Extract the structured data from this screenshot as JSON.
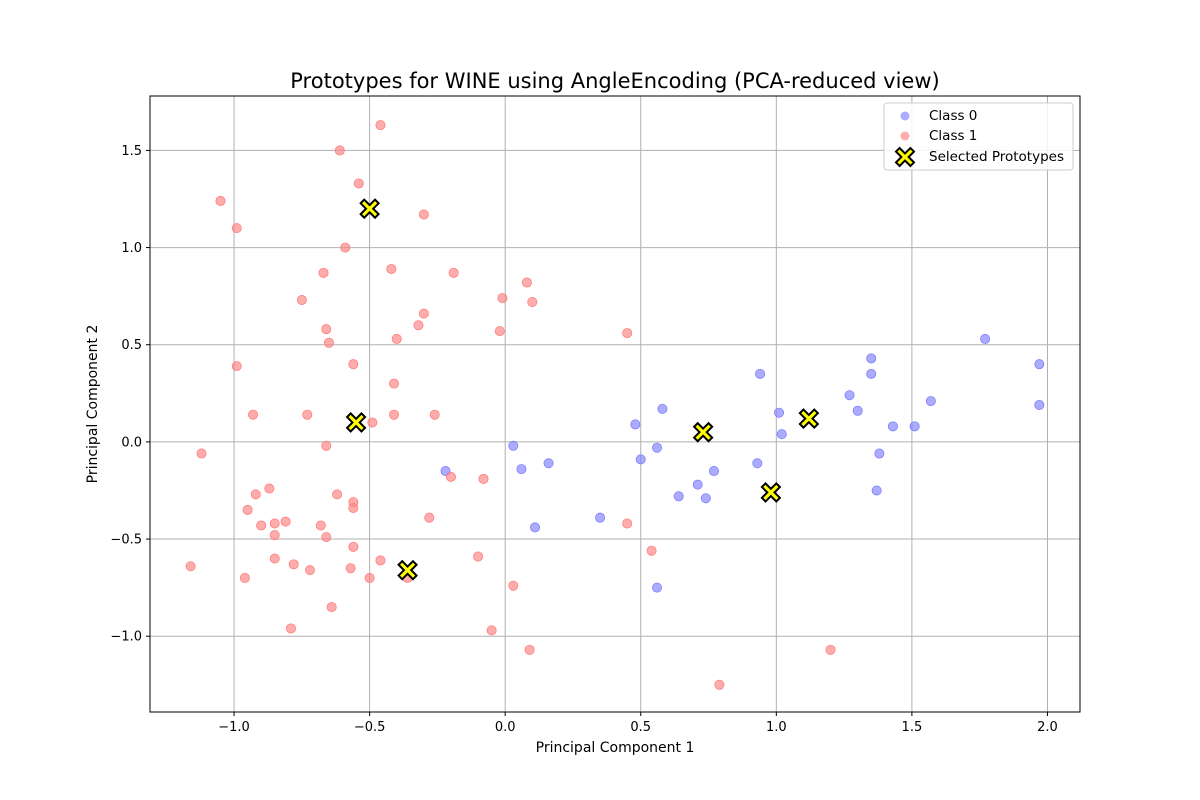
{
  "chart_data": {
    "type": "scatter",
    "title": "Prototypes for WINE using AngleEncoding (PCA-reduced view)",
    "xlabel": "Principal Component 1",
    "ylabel": "Principal Component 2",
    "xlim": [
      -1.31,
      2.12
    ],
    "ylim": [
      -1.39,
      1.78
    ],
    "xticks": [
      -1.0,
      -0.5,
      0.0,
      0.5,
      1.0,
      1.5,
      2.0
    ],
    "xtick_labels": [
      "−1.0",
      "−0.5",
      "0.0",
      "0.5",
      "1.0",
      "1.5",
      "2.0"
    ],
    "yticks": [
      -1.0,
      -0.5,
      0.0,
      0.5,
      1.0,
      1.5
    ],
    "ytick_labels": [
      "−1.0",
      "−0.5",
      "0.0",
      "0.5",
      "1.0",
      "1.5"
    ],
    "grid": true,
    "legend_position": "top-right",
    "series": [
      {
        "name": "Class 0",
        "color": "#7f7fff",
        "marker": "circle",
        "points": [
          [
            -0.22,
            -0.15
          ],
          [
            0.03,
            -0.02
          ],
          [
            0.06,
            -0.14
          ],
          [
            0.11,
            -0.44
          ],
          [
            0.16,
            -0.11
          ],
          [
            0.35,
            -0.39
          ],
          [
            0.48,
            0.09
          ],
          [
            0.5,
            -0.09
          ],
          [
            0.56,
            -0.03
          ],
          [
            0.56,
            -0.75
          ],
          [
            0.58,
            0.17
          ],
          [
            0.64,
            -0.28
          ],
          [
            0.71,
            -0.22
          ],
          [
            0.74,
            -0.29
          ],
          [
            0.77,
            -0.15
          ],
          [
            0.93,
            -0.11
          ],
          [
            0.94,
            0.35
          ],
          [
            1.01,
            0.15
          ],
          [
            1.02,
            0.04
          ],
          [
            1.27,
            0.24
          ],
          [
            1.3,
            0.16
          ],
          [
            1.35,
            0.43
          ],
          [
            1.35,
            0.35
          ],
          [
            1.38,
            -0.06
          ],
          [
            1.37,
            -0.25
          ],
          [
            1.43,
            0.08
          ],
          [
            1.51,
            0.08
          ],
          [
            1.57,
            0.21
          ],
          [
            1.77,
            0.53
          ],
          [
            1.97,
            0.4
          ],
          [
            1.97,
            0.19
          ]
        ]
      },
      {
        "name": "Class 1",
        "color": "#ff7f7f",
        "marker": "circle",
        "points": [
          [
            -1.16,
            -0.64
          ],
          [
            -1.12,
            -0.06
          ],
          [
            -1.05,
            1.24
          ],
          [
            -0.99,
            1.1
          ],
          [
            -0.99,
            0.39
          ],
          [
            -0.96,
            -0.7
          ],
          [
            -0.95,
            -0.35
          ],
          [
            -0.93,
            0.14
          ],
          [
            -0.92,
            -0.27
          ],
          [
            -0.9,
            -0.43
          ],
          [
            -0.87,
            -0.24
          ],
          [
            -0.85,
            -0.42
          ],
          [
            -0.85,
            -0.48
          ],
          [
            -0.85,
            -0.6
          ],
          [
            -0.81,
            -0.41
          ],
          [
            -0.79,
            -0.96
          ],
          [
            -0.78,
            -0.63
          ],
          [
            -0.75,
            0.73
          ],
          [
            -0.73,
            0.14
          ],
          [
            -0.72,
            -0.66
          ],
          [
            -0.68,
            -0.43
          ],
          [
            -0.67,
            0.87
          ],
          [
            -0.66,
            0.58
          ],
          [
            -0.66,
            -0.02
          ],
          [
            -0.66,
            -0.49
          ],
          [
            -0.65,
            0.51
          ],
          [
            -0.64,
            -0.85
          ],
          [
            -0.62,
            -0.27
          ],
          [
            -0.61,
            1.5
          ],
          [
            -0.59,
            1.0
          ],
          [
            -0.57,
            -0.65
          ],
          [
            -0.56,
            0.4
          ],
          [
            -0.56,
            -0.31
          ],
          [
            -0.56,
            -0.34
          ],
          [
            -0.56,
            -0.54
          ],
          [
            -0.54,
            1.33
          ],
          [
            -0.5,
            -0.7
          ],
          [
            -0.49,
            0.1
          ],
          [
            -0.46,
            1.63
          ],
          [
            -0.46,
            -0.61
          ],
          [
            -0.42,
            0.89
          ],
          [
            -0.41,
            0.3
          ],
          [
            -0.41,
            0.14
          ],
          [
            -0.4,
            0.53
          ],
          [
            -0.36,
            -0.7
          ],
          [
            -0.32,
            0.6
          ],
          [
            -0.3,
            1.17
          ],
          [
            -0.3,
            0.66
          ],
          [
            -0.28,
            -0.39
          ],
          [
            -0.26,
            0.14
          ],
          [
            -0.2,
            -0.18
          ],
          [
            -0.19,
            0.87
          ],
          [
            -0.1,
            -0.59
          ],
          [
            -0.08,
            -0.19
          ],
          [
            -0.05,
            -0.97
          ],
          [
            -0.02,
            0.57
          ],
          [
            -0.01,
            0.74
          ],
          [
            0.03,
            -0.74
          ],
          [
            0.08,
            0.82
          ],
          [
            0.09,
            -1.07
          ],
          [
            0.1,
            0.72
          ],
          [
            0.45,
            0.56
          ],
          [
            0.45,
            -0.42
          ],
          [
            0.54,
            -0.56
          ],
          [
            0.79,
            -1.25
          ],
          [
            1.2,
            -1.07
          ]
        ]
      },
      {
        "name": "Selected Prototypes",
        "color": "#ffff00",
        "edgecolor": "#000000",
        "marker": "x-filled",
        "points": [
          [
            -0.5,
            1.2
          ],
          [
            -0.55,
            0.1
          ],
          [
            -0.36,
            -0.66
          ],
          [
            0.73,
            0.05
          ],
          [
            0.98,
            -0.26
          ],
          [
            1.12,
            0.12
          ]
        ]
      }
    ]
  }
}
